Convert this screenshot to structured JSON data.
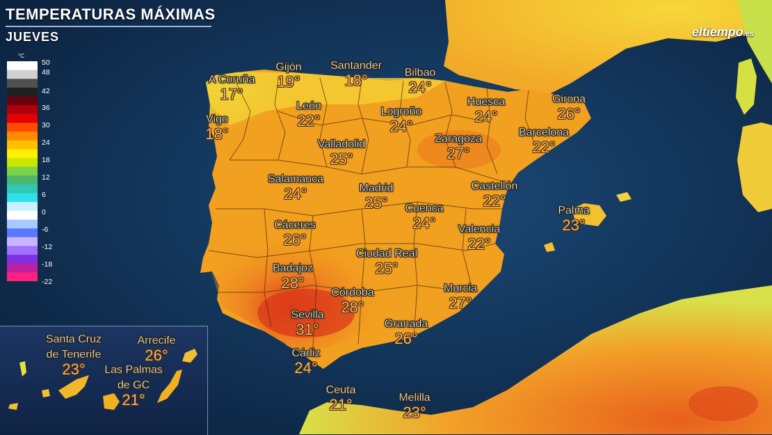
{
  "header": {
    "title": "TEMPERATURAS MÁXIMAS",
    "subtitle": "JUEVES"
  },
  "brand": {
    "logo_main": "eltiempo",
    "logo_suffix": ".es"
  },
  "legend": {
    "unit": "°C",
    "ticks": [
      "50",
      "48",
      "42",
      "36",
      "30",
      "24",
      "18",
      "12",
      "6",
      "0",
      "-6",
      "-12",
      "-18",
      "-22"
    ],
    "colors": [
      "#ffffff",
      "#d0d0d0",
      "#505050",
      "#202020",
      "#6a0010",
      "#b0000c",
      "#e60000",
      "#ff4a00",
      "#ff8c00",
      "#ffc000",
      "#fff000",
      "#c8e600",
      "#7ed24a",
      "#4cb870",
      "#30c8b4",
      "#30e0e8",
      "#c8f0ff",
      "#ffffff",
      "#a8c8ff",
      "#5878ff",
      "#c8b4ff",
      "#a070ff",
      "#8030e0",
      "#c020a0",
      "#ff2080"
    ]
  },
  "colors": {
    "sea": "#0d2a4a",
    "land_base": "#f2a020",
    "hot": "#e0401c",
    "mild": "#f6e23a",
    "temp_text": "#f0b46c"
  },
  "cities": [
    {
      "name": "A Coruña",
      "temp": "17°"
    },
    {
      "name": "Gijón",
      "temp": "19°"
    },
    {
      "name": "Santander",
      "temp": "18°"
    },
    {
      "name": "Bilbao",
      "temp": "24°"
    },
    {
      "name": "Vigo",
      "temp": "18°"
    },
    {
      "name": "León",
      "temp": "22°"
    },
    {
      "name": "Logroño",
      "temp": "24°"
    },
    {
      "name": "Huesca",
      "temp": "24°"
    },
    {
      "name": "Girona",
      "temp": "26°"
    },
    {
      "name": "Barcelona",
      "temp": "22°"
    },
    {
      "name": "Zaragoza",
      "temp": "27°"
    },
    {
      "name": "Valladolid",
      "temp": "25°"
    },
    {
      "name": "Salamanca",
      "temp": "24°"
    },
    {
      "name": "Madrid",
      "temp": "25°"
    },
    {
      "name": "Castellón",
      "temp": "22°"
    },
    {
      "name": "Cuenca",
      "temp": "24°"
    },
    {
      "name": "Palma",
      "temp": "23°"
    },
    {
      "name": "Cáceres",
      "temp": "26°"
    },
    {
      "name": "Valencia",
      "temp": "22°"
    },
    {
      "name": "Ciudad Real",
      "temp": "25°"
    },
    {
      "name": "Badajoz",
      "temp": "28°"
    },
    {
      "name": "Córdoba",
      "temp": "28°"
    },
    {
      "name": "Murcia",
      "temp": "27°"
    },
    {
      "name": "Sevilla",
      "temp": "31°"
    },
    {
      "name": "Granada",
      "temp": "26°"
    },
    {
      "name": "Cádiz",
      "temp": "24°"
    },
    {
      "name": "Ceuta",
      "temp": "21°"
    },
    {
      "name": "Melilla",
      "temp": "23°"
    }
  ],
  "canary": [
    {
      "name_line1": "Santa Cruz",
      "name_line2": "de Tenerife",
      "temp": "23°"
    },
    {
      "name_line1": "Arrecife",
      "name_line2": "",
      "temp": "26°"
    },
    {
      "name_line1": "Las Palmas",
      "name_line2": "de GC",
      "temp": "21°"
    }
  ]
}
